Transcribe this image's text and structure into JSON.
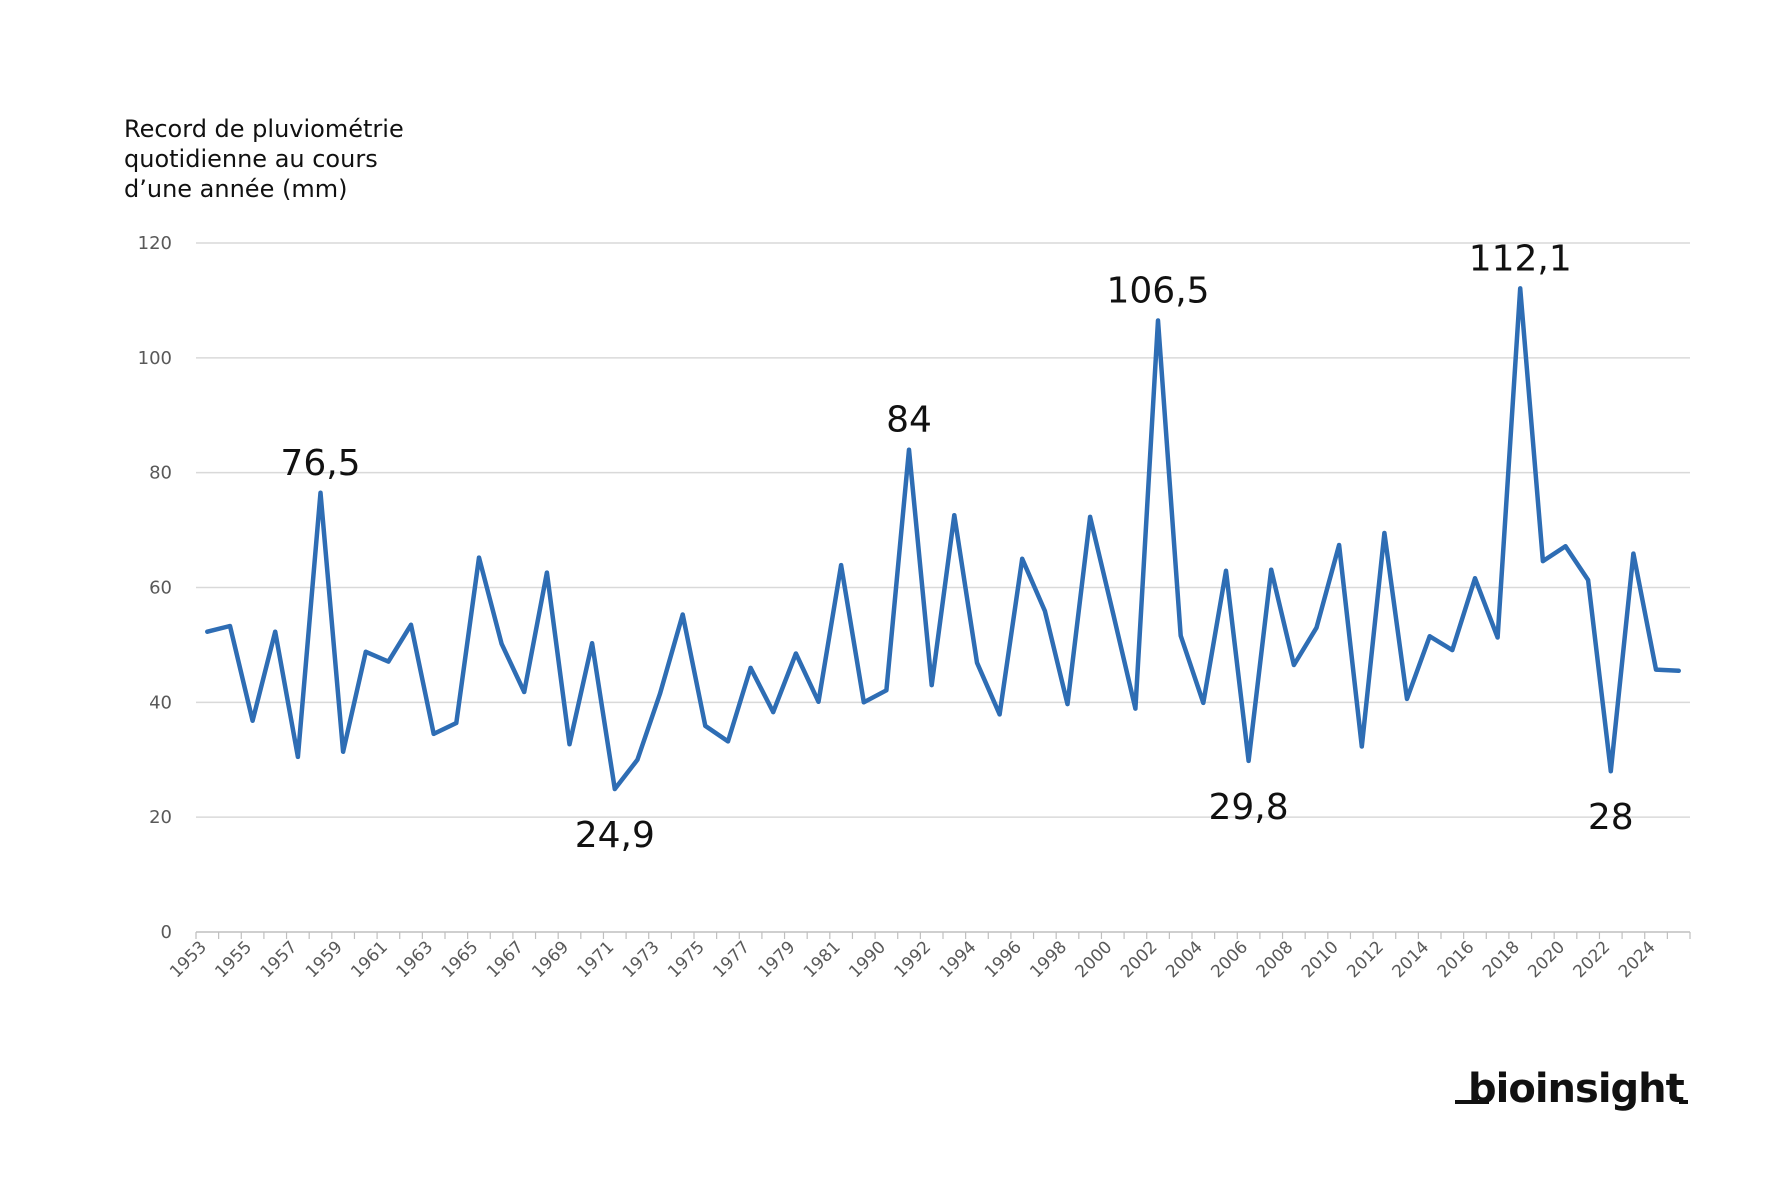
{
  "chart_data": {
    "type": "line",
    "title_lines": [
      "Record de pluviométrie",
      "quotidienne au cours",
      "d’une année (mm)"
    ],
    "ylim": [
      0,
      120
    ],
    "yticks": [
      0,
      20,
      40,
      60,
      80,
      100,
      120
    ],
    "grid": true,
    "line_color": "#2e6db4",
    "grid_color": "#d9d9d9",
    "x": [
      "1953",
      "1954",
      "1955",
      "1956",
      "1957",
      "1958",
      "1959",
      "1960",
      "1961",
      "1962",
      "1963",
      "1964",
      "1965",
      "1966",
      "1967",
      "1968",
      "1969",
      "1970",
      "1971",
      "1972",
      "1973",
      "1974",
      "1975",
      "1976",
      "1977",
      "1978",
      "1979",
      "1980",
      "1981",
      "1989",
      "1990",
      "1991",
      "1992",
      "1993",
      "1994",
      "1995",
      "1996",
      "1997",
      "1998",
      "1999",
      "2000",
      "2001",
      "2002",
      "2003",
      "2004",
      "2005",
      "2006",
      "2007",
      "2008",
      "2009",
      "2010",
      "2011",
      "2012",
      "2013",
      "2014",
      "2015",
      "2016",
      "2017",
      "2018",
      "2019",
      "2020",
      "2021",
      "2022",
      "2023",
      "2024",
      "2025"
    ],
    "x_tick_labels": [
      "1953",
      "1955",
      "1957",
      "1959",
      "1961",
      "1963",
      "1965",
      "1967",
      "1969",
      "1971",
      "1973",
      "1975",
      "1977",
      "1979",
      "1981",
      "1990",
      "1992",
      "1994",
      "1996",
      "1998",
      "2000",
      "2002",
      "2004",
      "2006",
      "2008",
      "2010",
      "2012",
      "2014",
      "2016",
      "2018",
      "2020",
      "2022",
      "2024"
    ],
    "series": [
      {
        "values": [
          52.3,
          53.3,
          36.8,
          52.3,
          30.5,
          76.5,
          31.4,
          48.8,
          47.1,
          53.5,
          34.5,
          36.4,
          65.2,
          50.2,
          41.8,
          62.6,
          32.7,
          50.3,
          24.9,
          30.0,
          41.5,
          55.3,
          35.9,
          33.2,
          46.0,
          38.3,
          48.5,
          40.1,
          63.9,
          40.0,
          42.1,
          84.0,
          43.0,
          72.6,
          46.9,
          37.9,
          65.0,
          55.9,
          39.7,
          72.3,
          55.7,
          38.9,
          106.5,
          51.6,
          39.9,
          62.9,
          29.8,
          63.1,
          46.5,
          53.0,
          67.4,
          32.3,
          69.5,
          40.6,
          51.5,
          49.1,
          61.6,
          51.3,
          112.1,
          64.6,
          67.2,
          61.3,
          28.0,
          65.9,
          45.7,
          45.5
        ]
      }
    ],
    "annotations": [
      {
        "text": "76,5",
        "x": "1958",
        "y": 76.5
      },
      {
        "text": "24,9",
        "x": "1971",
        "y": 24.9
      },
      {
        "text": "84",
        "x": "1991",
        "y": 84.0
      },
      {
        "text": "106,5",
        "x": "2002",
        "y": 106.5
      },
      {
        "text": "29,8",
        "x": "2006",
        "y": 29.8
      },
      {
        "text": "112,1",
        "x": "2018",
        "y": 112.1
      },
      {
        "text": "28",
        "x": "2022",
        "y": 28.0
      }
    ]
  },
  "brand": {
    "logo_text": "bioinsight",
    "color": "#111111"
  }
}
